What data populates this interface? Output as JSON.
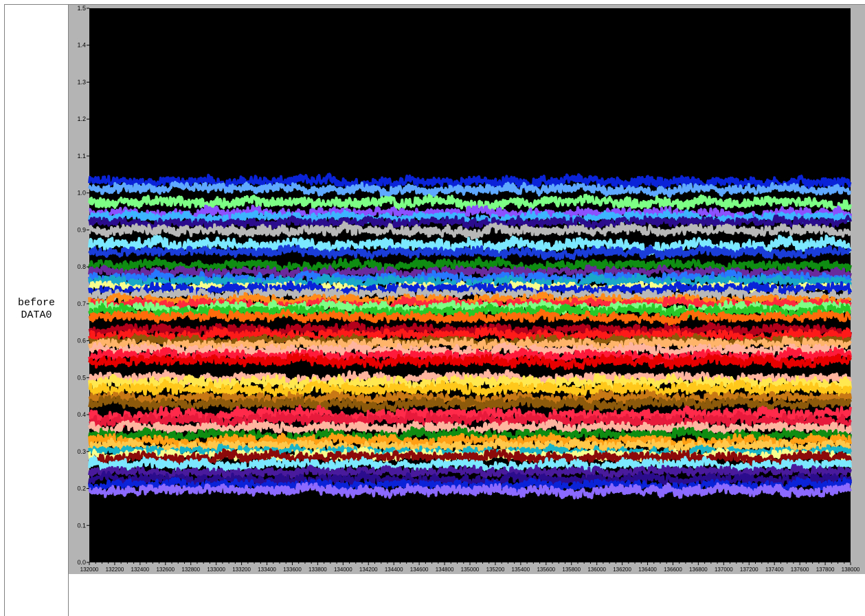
{
  "row": {
    "label_line1": "before",
    "label_line2": "DATA0"
  },
  "colors": {
    "panel_bg": "#b4b4b4",
    "plot_bg": "#000000",
    "tick_text": "#000000"
  },
  "chart_data": {
    "type": "line",
    "title": "",
    "xlabel": "",
    "ylabel": "",
    "xlim": [
      132000,
      138000
    ],
    "ylim": [
      0.0,
      1.5
    ],
    "grid": false,
    "legend": "none",
    "x_ticks": [
      "132000",
      "132200",
      "132400",
      "132600",
      "132800",
      "133000",
      "133200",
      "133400",
      "133600",
      "133800",
      "134000",
      "134200",
      "134400",
      "134600",
      "134800",
      "135000",
      "135200",
      "135400",
      "135600",
      "135800",
      "136000",
      "136200",
      "136400",
      "136600",
      "136800",
      "137000",
      "137200",
      "137400",
      "137600",
      "137800",
      "138000"
    ],
    "y_ticks": [
      "0.0",
      "0.1",
      "0.2",
      "0.3",
      "0.4",
      "0.5",
      "0.6",
      "0.7",
      "0.8",
      "0.9",
      "1.0",
      "1.1",
      "1.2",
      "1.3",
      "1.4",
      "1.5"
    ],
    "series": [
      {
        "level": 1.03,
        "noise": 0.01,
        "color": "#0a22d8"
      },
      {
        "level": 1.01,
        "noise": 0.009,
        "color": "#5fa8ff"
      },
      {
        "level": 0.975,
        "noise": 0.01,
        "color": "#7dff86"
      },
      {
        "level": 0.945,
        "noise": 0.01,
        "color": "#8c50ff"
      },
      {
        "level": 0.935,
        "noise": 0.009,
        "color": "#3db4ff"
      },
      {
        "level": 0.92,
        "noise": 0.009,
        "color": "#2a0c8c"
      },
      {
        "level": 0.9,
        "noise": 0.01,
        "color": "#b8b8b8"
      },
      {
        "level": 0.86,
        "noise": 0.012,
        "color": "#7ce8ff"
      },
      {
        "level": 0.84,
        "noise": 0.009,
        "color": "#1a3cd8"
      },
      {
        "level": 0.805,
        "noise": 0.01,
        "color": "#0f8c12"
      },
      {
        "level": 0.785,
        "noise": 0.009,
        "color": "#6a2a9c"
      },
      {
        "level": 0.77,
        "noise": 0.01,
        "color": "#2878ff"
      },
      {
        "level": 0.76,
        "noise": 0.01,
        "color": "#1aa8c8"
      },
      {
        "level": 0.745,
        "noise": 0.008,
        "color": "#f8ff8c"
      },
      {
        "level": 0.74,
        "noise": 0.01,
        "color": "#0a22d8"
      },
      {
        "level": 0.725,
        "noise": 0.009,
        "color": "#b8b8b8"
      },
      {
        "level": 0.71,
        "noise": 0.01,
        "color": "#ff8c1a"
      },
      {
        "level": 0.7,
        "noise": 0.009,
        "color": "#ff2a3c"
      },
      {
        "level": 0.69,
        "noise": 0.01,
        "color": "#7dff86"
      },
      {
        "level": 0.68,
        "noise": 0.01,
        "color": "#28c828"
      },
      {
        "level": 0.665,
        "noise": 0.009,
        "color": "#ff6a0a"
      },
      {
        "level": 0.63,
        "noise": 0.01,
        "color": "#b4001a"
      },
      {
        "level": 0.615,
        "noise": 0.01,
        "color": "#ff1a1a"
      },
      {
        "level": 0.6,
        "noise": 0.009,
        "color": "#8c5a0a"
      },
      {
        "level": 0.59,
        "noise": 0.01,
        "color": "#ffb46a"
      },
      {
        "level": 0.575,
        "noise": 0.01,
        "color": "#ffb4a0"
      },
      {
        "level": 0.56,
        "noise": 0.01,
        "color": "#ff1a3c"
      },
      {
        "level": 0.545,
        "noise": 0.01,
        "color": "#e80000"
      },
      {
        "level": 0.5,
        "noise": 0.01,
        "color": "#ffb4a0"
      },
      {
        "level": 0.485,
        "noise": 0.012,
        "color": "#ffe850"
      },
      {
        "level": 0.47,
        "noise": 0.011,
        "color": "#ffc81a"
      },
      {
        "level": 0.445,
        "noise": 0.01,
        "color": "#c87814"
      },
      {
        "level": 0.43,
        "noise": 0.01,
        "color": "#8c5a0a"
      },
      {
        "level": 0.4,
        "noise": 0.012,
        "color": "#ff2a4a"
      },
      {
        "level": 0.385,
        "noise": 0.011,
        "color": "#e81a3c"
      },
      {
        "level": 0.365,
        "noise": 0.01,
        "color": "#ffb4a0"
      },
      {
        "level": 0.345,
        "noise": 0.01,
        "color": "#0f8c12"
      },
      {
        "level": 0.33,
        "noise": 0.01,
        "color": "#ffa014"
      },
      {
        "level": 0.315,
        "noise": 0.01,
        "color": "#ffc84a"
      },
      {
        "level": 0.3,
        "noise": 0.009,
        "color": "#1ab4c8"
      },
      {
        "level": 0.29,
        "noise": 0.01,
        "color": "#f8ff8c"
      },
      {
        "level": 0.285,
        "noise": 0.01,
        "color": "#8c0a0a"
      },
      {
        "level": 0.265,
        "noise": 0.01,
        "color": "#7ce8ff"
      },
      {
        "level": 0.245,
        "noise": 0.009,
        "color": "#4a1a9c"
      },
      {
        "level": 0.225,
        "noise": 0.01,
        "color": "#2a0c8c"
      },
      {
        "level": 0.21,
        "noise": 0.009,
        "color": "#0a22d8"
      },
      {
        "level": 0.195,
        "noise": 0.01,
        "color": "#8c6aff"
      }
    ]
  }
}
